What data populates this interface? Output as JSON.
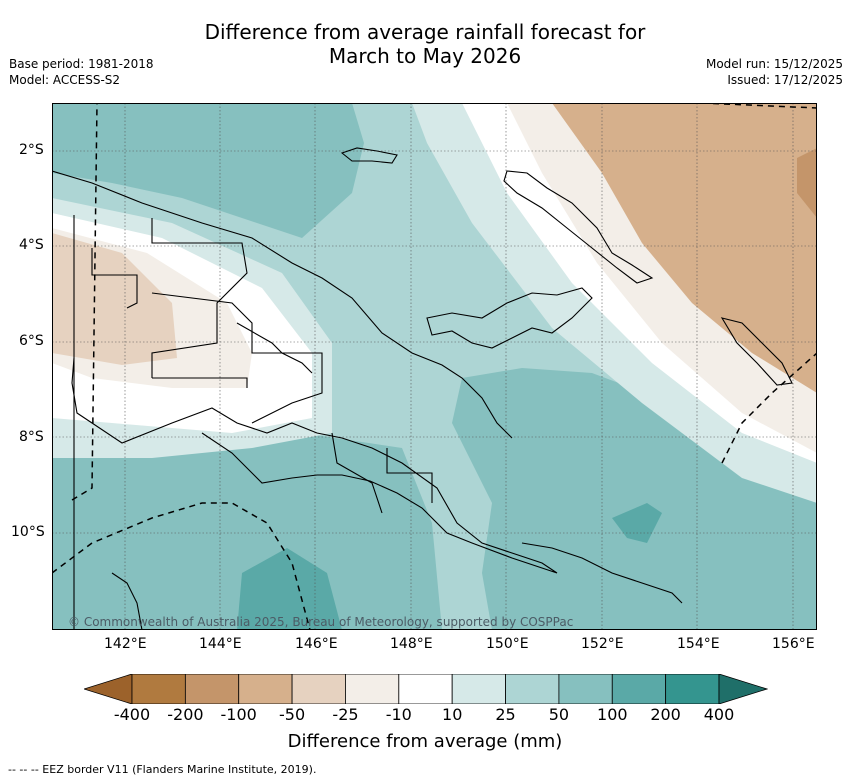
{
  "title": {
    "line1": "Difference from average rainfall forecast for",
    "line2": "March to May 2026"
  },
  "meta": {
    "base_period": "Base period: 1981-2018",
    "model": "Model: ACCESS-S2",
    "model_run": "Model run: 15/12/2025",
    "issued": "Issued: 17/12/2025"
  },
  "map": {
    "x_ticks": [
      "142°E",
      "144°E",
      "146°E",
      "148°E",
      "150°E",
      "152°E",
      "154°E",
      "156°E"
    ],
    "y_ticks": [
      "2°S",
      "4°S",
      "6°S",
      "8°S",
      "10°S"
    ],
    "copyright": "© Commonwealth of Australia 2025, Bureau of Meteorology, supported by COSPPac"
  },
  "legend": {
    "labels": [
      "-400",
      "-200",
      "-100",
      "-50",
      "-25",
      "-10",
      "10",
      "25",
      "50",
      "100",
      "200",
      "400"
    ],
    "colors": [
      "#9c622b",
      "#b07a3f",
      "#c4956a",
      "#d6b08c",
      "#e6d2c0",
      "#f3eee8",
      "#ffffff",
      "#d6e9e8",
      "#add5d4",
      "#86c0bf",
      "#5aa9a7",
      "#34958f",
      "#1f6f69"
    ],
    "title": "Difference from average (mm)"
  },
  "footnote": "--  --  -- EEZ border V11 (Flanders Marine Institute, 2019)."
}
